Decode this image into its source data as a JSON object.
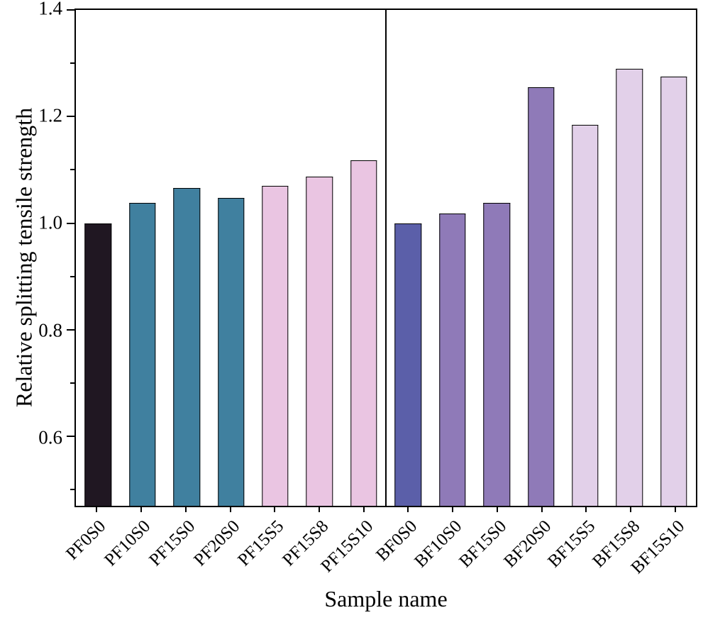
{
  "chart_data": {
    "type": "bar",
    "title": "",
    "xlabel": "Sample name",
    "ylabel": "Relative splitting tensile strength",
    "categories": [
      "PF0S0",
      "PF10S0",
      "PF15S0",
      "PF20S0",
      "PF15S5",
      "PF15S8",
      "PF15S10",
      "BF0S0",
      "BF10S0",
      "BF15S0",
      "BF20S0",
      "BF15S5",
      "BF15S8",
      "BF15S10"
    ],
    "values": [
      1.0,
      1.038,
      1.066,
      1.048,
      1.07,
      1.088,
      1.118,
      1.0,
      1.018,
      1.038,
      1.255,
      1.185,
      1.29,
      1.275
    ],
    "bar_colors": [
      "#201722",
      "#40809f",
      "#40809f",
      "#40809f",
      "#eac5e2",
      "#eac5e2",
      "#eac5e2",
      "#5b5fa9",
      "#8f7ab8",
      "#8f7ab8",
      "#8f7ab8",
      "#e2d0e9",
      "#e2d0e9",
      "#e2d0e9"
    ],
    "ylim": [
      0.47,
      1.4
    ],
    "yticks": [
      0.6,
      0.8,
      1.0,
      1.2,
      1.4
    ],
    "ytick_labels": [
      "0.6",
      "0.8",
      "1.0",
      "1.2",
      "1.4"
    ],
    "yticks_minor": [
      0.5,
      0.7,
      0.9,
      1.1,
      1.3
    ],
    "grid": false,
    "legend": "none",
    "group_divider_after_index": 6,
    "groups": [
      {
        "name": "PF",
        "categories": [
          "PF0S0",
          "PF10S0",
          "PF15S0",
          "PF20S0",
          "PF15S5",
          "PF15S8",
          "PF15S10"
        ]
      },
      {
        "name": "BF",
        "categories": [
          "BF0S0",
          "BF10S0",
          "BF15S0",
          "BF20S0",
          "BF15S5",
          "BF15S8",
          "BF15S10"
        ]
      }
    ]
  },
  "colors": {
    "axis": "#000000",
    "background": "#ffffff",
    "bar_border": "#000000"
  }
}
